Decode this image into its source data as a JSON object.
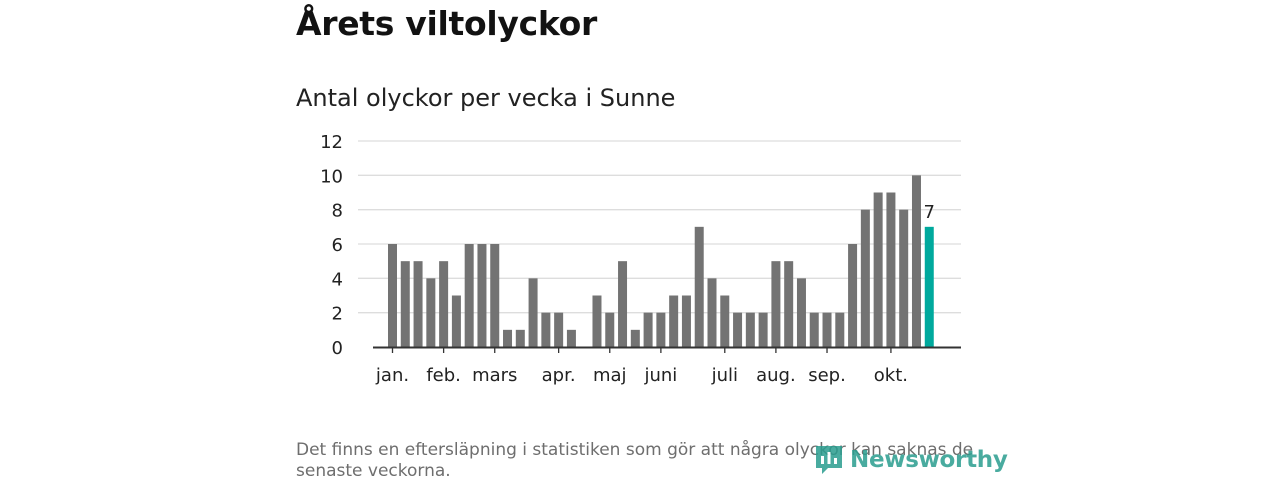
{
  "title": "Årets viltolyckor",
  "subtitle": "Antal olyckor per vecka i Sunne",
  "footnote": "Det finns en eftersläpning i statistiken som gör att några olyckor kan saknas de senaste veckorna.",
  "logo": {
    "text": "Newsworthy",
    "icon": "newsworthy-logo-icon"
  },
  "colors": {
    "bar": "#737373",
    "highlight": "#00a99d",
    "grid": "#dddddd",
    "axis": "#333333",
    "brand": "#2a9d8f"
  },
  "chart_data": {
    "type": "bar",
    "title": "Antal olyckor per vecka i Sunne",
    "xlabel": "",
    "ylabel": "",
    "ylim": [
      0,
      12
    ],
    "yticks": [
      0,
      2,
      4,
      6,
      8,
      10,
      12
    ],
    "grid": true,
    "values": [
      6,
      5,
      5,
      4,
      5,
      3,
      6,
      6,
      6,
      1,
      1,
      4,
      2,
      2,
      1,
      0,
      3,
      2,
      5,
      1,
      2,
      2,
      3,
      3,
      7,
      4,
      3,
      2,
      2,
      2,
      5,
      5,
      4,
      2,
      2,
      2,
      6,
      8,
      9,
      9,
      8,
      10,
      7
    ],
    "highlight_last": true,
    "last_value_label": "7",
    "month_labels": [
      {
        "label": "jan.",
        "week": 0
      },
      {
        "label": "feb.",
        "week": 4
      },
      {
        "label": "mars",
        "week": 8
      },
      {
        "label": "apr.",
        "week": 13
      },
      {
        "label": "maj",
        "week": 17
      },
      {
        "label": "juni",
        "week": 21
      },
      {
        "label": "juli",
        "week": 26
      },
      {
        "label": "aug.",
        "week": 30
      },
      {
        "label": "sep.",
        "week": 34
      },
      {
        "label": "okt.",
        "week": 39
      }
    ]
  }
}
